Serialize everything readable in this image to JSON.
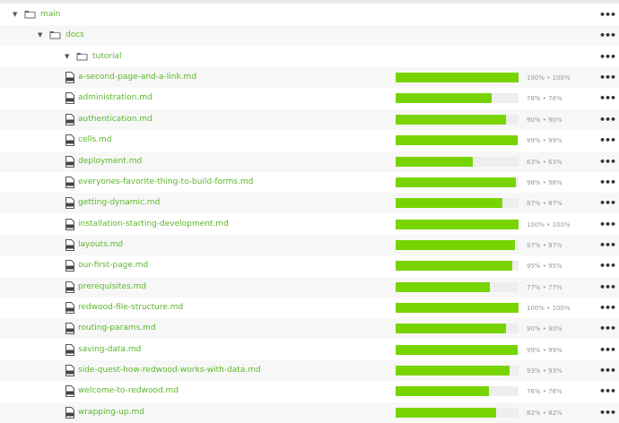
{
  "folders": [
    {
      "name": "main",
      "menu": "•••"
    },
    {
      "name": "docs",
      "menu": "•••"
    },
    {
      "name": "tutorial",
      "menu": "•••"
    }
  ],
  "files": [
    {
      "name": "a-second-page-and-a-link.md",
      "percent": 100,
      "label": "100% • 100%",
      "menu": "•••"
    },
    {
      "name": "administration.md",
      "percent": 78,
      "label": "78% • 78%",
      "menu": "•••"
    },
    {
      "name": "authentication.md",
      "percent": 90,
      "label": "90% • 90%",
      "menu": "•••"
    },
    {
      "name": "cells.md",
      "percent": 99,
      "label": "99% • 99%",
      "menu": "•••"
    },
    {
      "name": "deployment.md",
      "percent": 63,
      "label": "63% • 63%",
      "menu": "•••"
    },
    {
      "name": "everyones-favorite-thing-to-build-forms.md",
      "percent": 98,
      "label": "98% • 98%",
      "menu": "•••"
    },
    {
      "name": "getting-dynamic.md",
      "percent": 87,
      "label": "87% • 87%",
      "menu": "•••"
    },
    {
      "name": "installation-starting-development.md",
      "percent": 100,
      "label": "100% • 100%",
      "menu": "•••"
    },
    {
      "name": "layouts.md",
      "percent": 97,
      "label": "97% • 97%",
      "menu": "•••"
    },
    {
      "name": "our-first-page.md",
      "percent": 95,
      "label": "95% • 95%",
      "menu": "•••"
    },
    {
      "name": "prerequisites.md",
      "percent": 77,
      "label": "77% • 77%",
      "menu": "•••"
    },
    {
      "name": "redwood-file-structure.md",
      "percent": 100,
      "label": "100% • 100%",
      "menu": "•••"
    },
    {
      "name": "routing-params.md",
      "percent": 90,
      "label": "90% • 90%",
      "menu": "•••"
    },
    {
      "name": "saving-data.md",
      "percent": 99,
      "label": "99% • 99%",
      "menu": "•••"
    },
    {
      "name": "side-quest-how-redwood-works-with-data.md",
      "percent": 93,
      "label": "93% • 93%",
      "menu": "•••"
    },
    {
      "name": "welcome-to-redwood.md",
      "percent": 76,
      "label": "76% • 76%",
      "menu": "•••"
    },
    {
      "name": "wrapping-up.md",
      "percent": 82,
      "label": "82% • 82%",
      "menu": "•••"
    }
  ],
  "colors": {
    "link": "#5bb72a",
    "progress": "#78d400",
    "track": "#eeeeee"
  },
  "icons": {
    "collapse": "caret-down-icon",
    "folder": "folder-icon",
    "file": "file-icon",
    "menu": "ellipsis-icon"
  }
}
